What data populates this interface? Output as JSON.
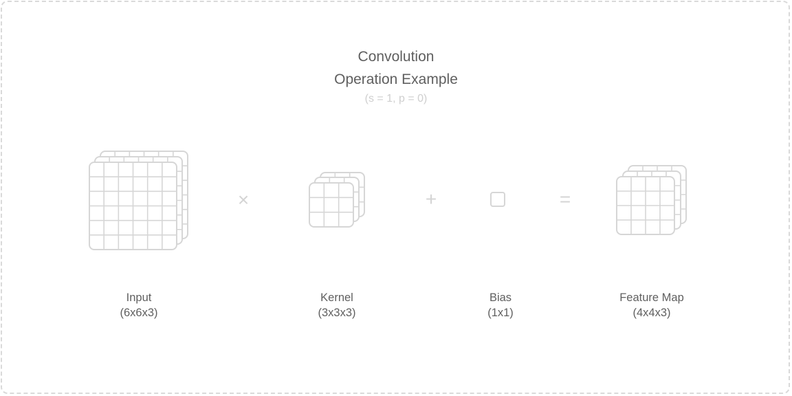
{
  "diagram": {
    "title_line1": "Convolution",
    "title_line2": "Operation Example",
    "subtitle": "(s = 1, p = 0)",
    "operators": {
      "multiply": "×",
      "plus": "+",
      "equals": "="
    },
    "components": [
      {
        "name": "Input",
        "shape": "(6x6x3)",
        "grid": 6,
        "layers": 3
      },
      {
        "name": "Kernel",
        "shape": "(3x3x3)",
        "grid": 3,
        "layers": 3
      },
      {
        "name": "Bias",
        "shape": "(1x1)",
        "grid": 1,
        "layers": 1
      },
      {
        "name": "Feature Map",
        "shape": "(4x4x3)",
        "grid": 4,
        "layers": 3
      }
    ],
    "colors": {
      "grid_stroke": "#d6d6d6",
      "operator": "#d4d4d4",
      "text": "#5f5f5f",
      "subtitle": "#cfcfcf",
      "border": "#d9d9d9"
    }
  }
}
